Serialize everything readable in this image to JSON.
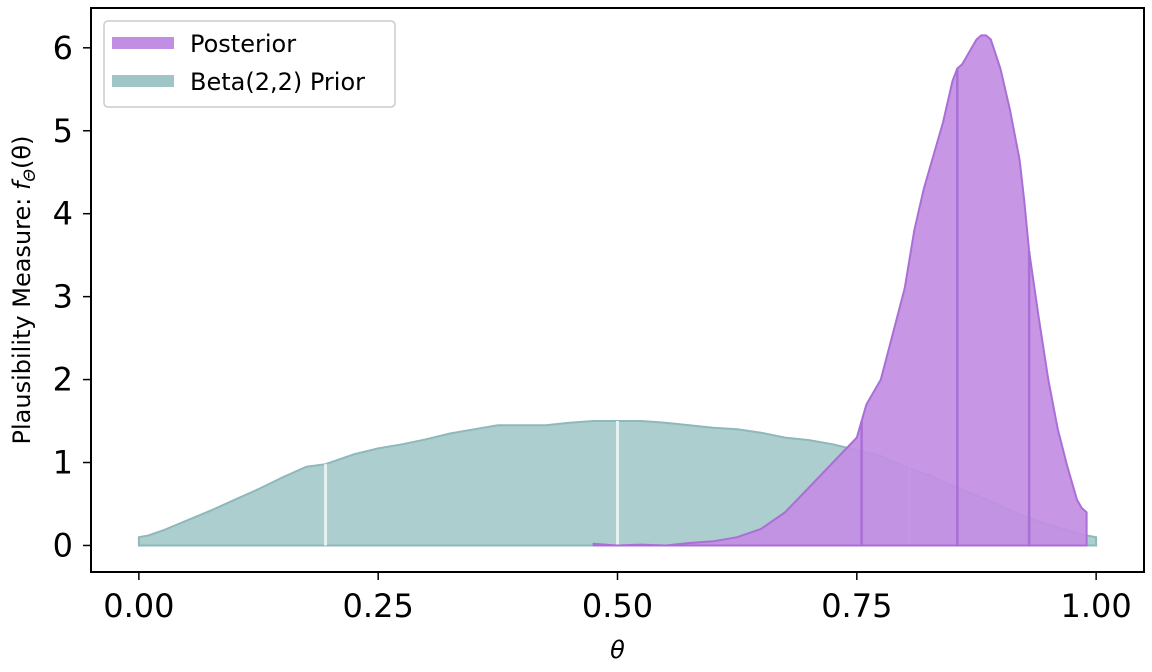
{
  "chart_data": {
    "type": "area",
    "title": "",
    "xlabel": "θ",
    "ylabel_prefix": "Plausibility Measure: ",
    "ylabel_f": "f",
    "ylabel_sub": "Θ",
    "ylabel_suffix": "(θ)",
    "xlim": [
      -0.05,
      1.05
    ],
    "ylim": [
      -0.32,
      6.48
    ],
    "xticks": [
      0.0,
      0.25,
      0.5,
      0.75,
      1.0
    ],
    "xtick_labels": [
      "0.00",
      "0.25",
      "0.50",
      "0.75",
      "1.00"
    ],
    "yticks": [
      0,
      1,
      2,
      3,
      4,
      5,
      6
    ],
    "ytick_labels": [
      "0",
      "1",
      "2",
      "3",
      "4",
      "5",
      "6"
    ],
    "grid": false,
    "legend_position": "top-left",
    "series": [
      {
        "name": "Posterior",
        "color": "#c28ee4",
        "edge_color": "#a96fd6",
        "x": [
          0.475,
          0.5,
          0.525,
          0.55,
          0.575,
          0.6,
          0.625,
          0.65,
          0.675,
          0.7,
          0.725,
          0.75,
          0.76,
          0.775,
          0.8,
          0.81,
          0.82,
          0.83,
          0.84,
          0.85,
          0.855,
          0.86,
          0.865,
          0.87,
          0.875,
          0.88,
          0.885,
          0.89,
          0.9,
          0.91,
          0.92,
          0.925,
          0.93,
          0.94,
          0.95,
          0.96,
          0.97,
          0.98,
          0.985,
          0.99
        ],
        "y": [
          0.02,
          0.0,
          0.01,
          0.0,
          0.03,
          0.05,
          0.1,
          0.2,
          0.4,
          0.7,
          1.0,
          1.3,
          1.7,
          2.0,
          3.1,
          3.8,
          4.3,
          4.7,
          5.1,
          5.6,
          5.75,
          5.8,
          5.9,
          6.0,
          6.1,
          6.15,
          6.15,
          6.1,
          5.75,
          5.25,
          4.65,
          4.15,
          3.55,
          2.75,
          2.0,
          1.4,
          0.95,
          0.55,
          0.45,
          0.4
        ],
        "segment_boundaries": [
          0.755,
          0.855,
          0.93
        ]
      },
      {
        "name": "Beta(2,2) Prior",
        "color": "#9fc5c6",
        "edge_color": "#8fb8ba",
        "x": [
          0.0,
          0.01,
          0.025,
          0.05,
          0.075,
          0.1,
          0.125,
          0.15,
          0.175,
          0.195,
          0.2,
          0.225,
          0.25,
          0.275,
          0.3,
          0.325,
          0.35,
          0.375,
          0.4,
          0.425,
          0.45,
          0.475,
          0.5,
          0.525,
          0.55,
          0.575,
          0.6,
          0.625,
          0.65,
          0.675,
          0.7,
          0.725,
          0.75,
          0.775,
          0.8,
          0.825,
          0.85,
          0.875,
          0.9,
          0.925,
          0.95,
          0.975,
          0.99,
          1.0
        ],
        "y": [
          0.1,
          0.12,
          0.18,
          0.3,
          0.42,
          0.55,
          0.68,
          0.82,
          0.95,
          0.98,
          1.0,
          1.1,
          1.17,
          1.22,
          1.28,
          1.35,
          1.4,
          1.45,
          1.45,
          1.45,
          1.48,
          1.5,
          1.5,
          1.5,
          1.48,
          1.45,
          1.42,
          1.4,
          1.36,
          1.3,
          1.27,
          1.22,
          1.15,
          1.08,
          0.95,
          0.85,
          0.72,
          0.6,
          0.48,
          0.35,
          0.25,
          0.17,
          0.12,
          0.1
        ],
        "segment_boundaries": [
          0.195,
          0.5,
          0.805
        ]
      }
    ]
  }
}
